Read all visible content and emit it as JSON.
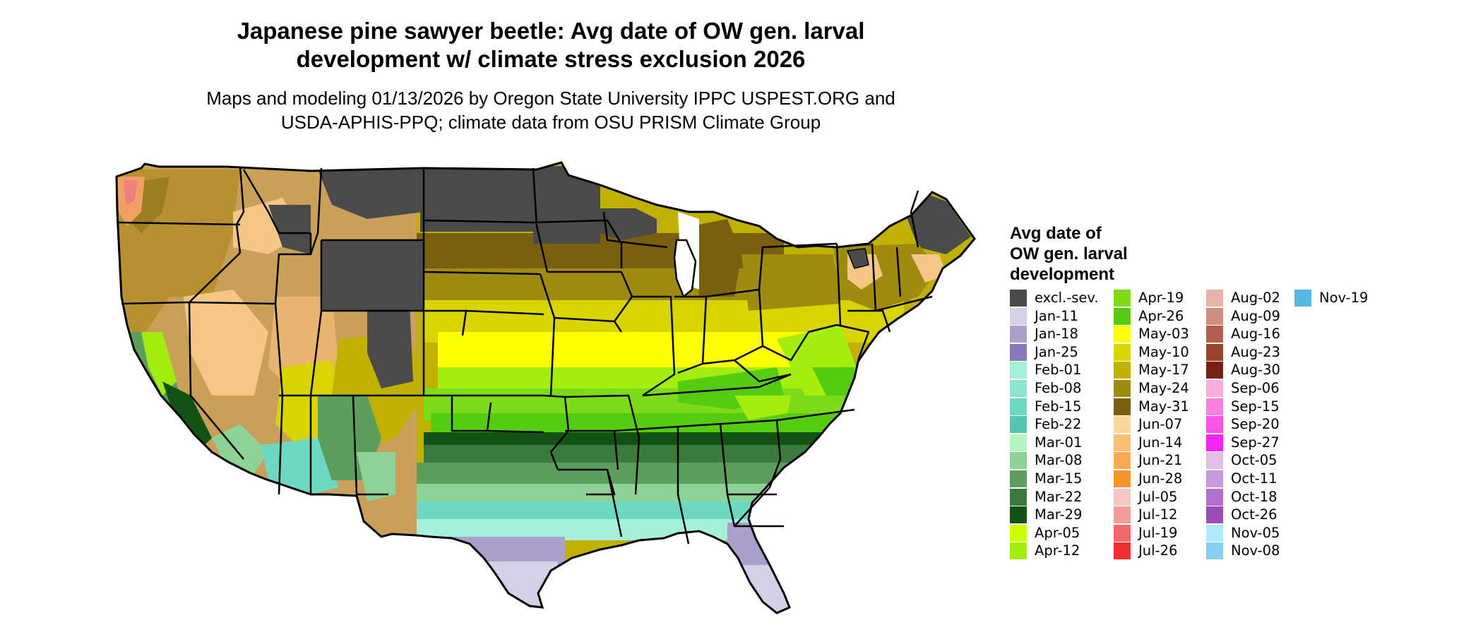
{
  "title": "Japanese pine sawyer beetle: Avg date of OW gen. larval development w/ climate stress exclusion 2026",
  "title_lines": [
    "Japanese pine sawyer beetle: Avg date of OW gen. larval",
    "development w/ climate stress exclusion 2026"
  ],
  "subtitle_lines": [
    "Maps and modeling 01/13/2026 by Oregon State University IPPC USPEST.ORG and",
    "USDA-APHIS-PPQ; climate data from OSU PRISM Climate Group"
  ],
  "legend_title_lines": [
    "Avg date of",
    "OW gen. larval",
    "development"
  ],
  "map": {
    "region": "Contiguous United States",
    "boundaries": "state borders",
    "colors": {
      "exclusion": "#4a4a4a",
      "north_brown": "#7a5f10",
      "olive": "#a08a10",
      "olive_light": "#c0b000",
      "yellow_olive": "#d9d400",
      "yellow": "#ffff00",
      "green_bright": "#a3ee0e",
      "green": "#55cc11",
      "green_dark": "#3d7a3d",
      "green_darkest": "#145214",
      "green_mid": "#5c9e5c",
      "mint": "#8fd8b8",
      "teal_light": "#7cdccc",
      "lavender": "#ab9fcc",
      "lavender_light": "#d6cfe8",
      "tan": "#f5c686",
      "salmon": "#f0a064",
      "pink": "#f08080"
    }
  },
  "legend": {
    "columns": [
      [
        {
          "label": "excl.-sev.",
          "color": "#4a4a4a"
        },
        {
          "label": "Jan-11",
          "color": "#d6cfe8"
        },
        {
          "label": "Jan-18",
          "color": "#ab9fcc"
        },
        {
          "label": "Jan-25",
          "color": "#8979b8"
        },
        {
          "label": "Feb-01",
          "color": "#a5f0dc"
        },
        {
          "label": "Feb-08",
          "color": "#8ce6d2"
        },
        {
          "label": "Feb-15",
          "color": "#6cd8c2"
        },
        {
          "label": "Feb-22",
          "color": "#55c6b0"
        },
        {
          "label": "Mar-01",
          "color": "#b6f5c0"
        },
        {
          "label": "Mar-08",
          "color": "#8dd296"
        },
        {
          "label": "Mar-15",
          "color": "#5c9e5c"
        },
        {
          "label": "Mar-22",
          "color": "#3d7a3d"
        },
        {
          "label": "Mar-29",
          "color": "#145214"
        },
        {
          "label": "Apr-05",
          "color": "#ccff00"
        },
        {
          "label": "Apr-12",
          "color": "#a3ee0e"
        }
      ],
      [
        {
          "label": "Apr-19",
          "color": "#7ddb1a"
        },
        {
          "label": "Apr-26",
          "color": "#55cc11"
        },
        {
          "label": "May-03",
          "color": "#ffff00"
        },
        {
          "label": "May-10",
          "color": "#d9d400"
        },
        {
          "label": "May-17",
          "color": "#c0b000"
        },
        {
          "label": "May-24",
          "color": "#a08a10"
        },
        {
          "label": "May-31",
          "color": "#7a5f10"
        },
        {
          "label": "Jun-07",
          "color": "#fdd79a"
        },
        {
          "label": "Jun-14",
          "color": "#fcc070"
        },
        {
          "label": "Jun-21",
          "color": "#fbaa50"
        },
        {
          "label": "Jun-28",
          "color": "#fa9430"
        },
        {
          "label": "Jul-05",
          "color": "#f5c8c8"
        },
        {
          "label": "Jul-12",
          "color": "#f59a9a"
        },
        {
          "label": "Jul-19",
          "color": "#f06a6a"
        },
        {
          "label": "Jul-26",
          "color": "#f03030"
        }
      ],
      [
        {
          "label": "Aug-02",
          "color": "#e8b4a8"
        },
        {
          "label": "Aug-09",
          "color": "#cf8e80"
        },
        {
          "label": "Aug-16",
          "color": "#b2604d"
        },
        {
          "label": "Aug-23",
          "color": "#9a4430"
        },
        {
          "label": "Aug-30",
          "color": "#7a2010"
        },
        {
          "label": "Sep-06",
          "color": "#fcaee0"
        },
        {
          "label": "Sep-15",
          "color": "#fa80e0"
        },
        {
          "label": "Sep-20",
          "color": "#fa55e8"
        },
        {
          "label": "Sep-27",
          "color": "#f524f0"
        },
        {
          "label": "Oct-05",
          "color": "#e0c0e8"
        },
        {
          "label": "Oct-11",
          "color": "#c898dc"
        },
        {
          "label": "Oct-18",
          "color": "#b070cc"
        },
        {
          "label": "Oct-26",
          "color": "#9a4cb8"
        },
        {
          "label": "Nov-05",
          "color": "#b0e8fc"
        },
        {
          "label": "Nov-08",
          "color": "#88d0f2"
        }
      ],
      [
        {
          "label": "Nov-19",
          "color": "#58b8e2"
        }
      ]
    ]
  }
}
